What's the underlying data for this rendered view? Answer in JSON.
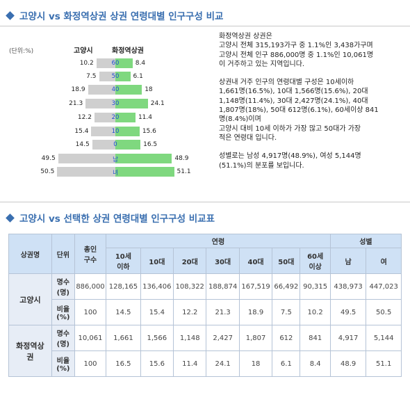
{
  "section1": {
    "title": "고양시 vs 화정역상권 상권 연령대별 인구구성 비교"
  },
  "pyramid": {
    "unit_label": "(단위:%)",
    "left_header": "고양시",
    "right_header": "화정역상권",
    "rows": [
      {
        "cat": "60",
        "left": 10.2,
        "right": 8.4
      },
      {
        "cat": "50",
        "left": 7.5,
        "right": 6.1
      },
      {
        "cat": "40",
        "left": 18.9,
        "right": 18
      },
      {
        "cat": "30",
        "left": 21.3,
        "right": 24.1
      },
      {
        "cat": "20",
        "left": 12.2,
        "right": 11.4
      },
      {
        "cat": "10",
        "left": 15.4,
        "right": 15.6
      },
      {
        "cat": "0",
        "left": 14.5,
        "right": 16.5
      },
      {
        "cat": "남",
        "left": 49.5,
        "right": 48.9
      },
      {
        "cat": "녀",
        "left": 50.5,
        "right": 51.1
      }
    ]
  },
  "description": {
    "p1": "화정역상권 상권은\n고양시 전체 315,193가구 중 1.1%인 3,438가구며\n고양시 전체 인구 886,000명 중 1.1%인 10,061명\n이 거주하고 있는 지역입니다.",
    "p2": "상권내 거주 인구의 연령대별 구성은 10세이하\n1,661명(16.5%), 10대 1,566명(15.6%), 20대\n1,148명(11.4%), 30대 2,427명(24.1%), 40대\n1,807명(18%), 50대 612명(6.1%), 60세이상 841\n명(8.4%)이며\n고양시 대비 10세 이하가 가장 많고 50대가 가장\n적은 연령대 입니다.",
    "p3": "성별로는 남성 4,917명(48.9%), 여성 5,144명\n(51.1%)의 분포를 보입니다."
  },
  "section2": {
    "title": "고양시 vs 선택한 상권 연령대별 인구구성 비교표"
  },
  "table": {
    "h_area": "상권명",
    "h_unit": "단위",
    "h_total": "총인\n구수",
    "h_age": "연령",
    "h_gender": "성별",
    "age_cols": [
      "10세\n이하",
      "10대",
      "20대",
      "30대",
      "40대",
      "50대",
      "60세\n이상"
    ],
    "gender_cols": [
      "남",
      "여"
    ],
    "areas": [
      {
        "name": "고양시",
        "rows": [
          {
            "unit": "명수\n(명)",
            "values": [
              "886,000",
              "128,165",
              "136,406",
              "108,322",
              "188,874",
              "167,519",
              "66,492",
              "90,315",
              "438,973",
              "447,023"
            ]
          },
          {
            "unit": "비율\n(%)",
            "values": [
              "100",
              "14.5",
              "15.4",
              "12.2",
              "21.3",
              "18.9",
              "7.5",
              "10.2",
              "49.5",
              "50.5"
            ]
          }
        ]
      },
      {
        "name": "화정역상\n권",
        "rows": [
          {
            "unit": "명수\n(명)",
            "values": [
              "10,061",
              "1,661",
              "1,566",
              "1,148",
              "2,427",
              "1,807",
              "612",
              "841",
              "4,917",
              "5,144"
            ]
          },
          {
            "unit": "비율\n(%)",
            "values": [
              "100",
              "16.5",
              "15.6",
              "11.4",
              "24.1",
              "18",
              "6.1",
              "8.4",
              "48.9",
              "51.1"
            ]
          }
        ]
      }
    ]
  }
}
